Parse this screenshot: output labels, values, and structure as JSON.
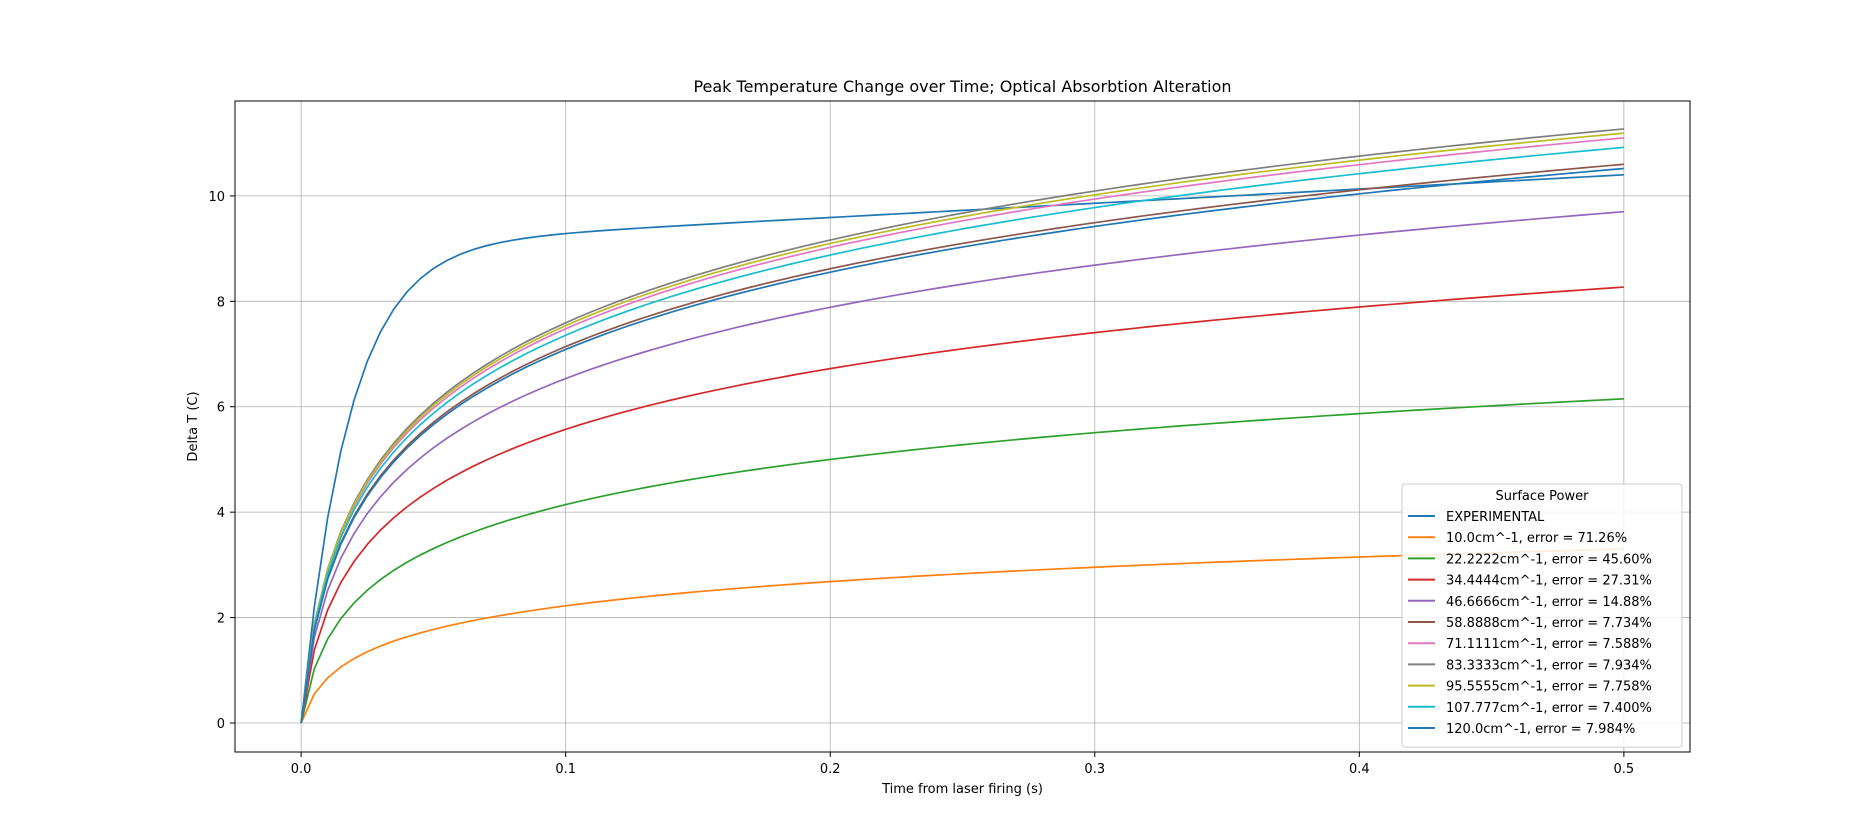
{
  "chart_data": {
    "type": "line",
    "title": "Peak Temperature Change over Time; Optical Absorbtion Alteration",
    "xlabel": "Time from laser firing (s)",
    "ylabel": "Delta T (C)",
    "xlim": [
      -0.025,
      0.525
    ],
    "ylim": [
      -0.55,
      11.8
    ],
    "xticks": [
      0.0,
      0.1,
      0.2,
      0.3,
      0.4,
      0.5
    ],
    "xtick_labels": [
      "0.0",
      "0.1",
      "0.2",
      "0.3",
      "0.4",
      "0.5"
    ],
    "yticks": [
      0,
      2,
      4,
      6,
      8,
      10
    ],
    "ytick_labels": [
      "0",
      "2",
      "4",
      "6",
      "8",
      "10"
    ],
    "grid": true,
    "legend_title": "Surface Power",
    "legend_position": "lower-right",
    "series": [
      {
        "name": "EXPERIMENTAL",
        "color": "#1f77b4",
        "kind": "exp",
        "final": 10.4
      },
      {
        "name": "10.0cm^-1, error = 71.26%",
        "color": "#ff7f0e",
        "final": 3.3
      },
      {
        "name": "22.2222cm^-1, error = 45.60%",
        "color": "#2ca02c",
        "final": 6.15
      },
      {
        "name": "34.4444cm^-1, error = 27.31%",
        "color": "#d62728",
        "final": 8.27
      },
      {
        "name": "46.6666cm^-1, error = 14.88%",
        "color": "#9467bd",
        "final": 9.7
      },
      {
        "name": "58.8888cm^-1, error = 7.734%",
        "color": "#8c564b",
        "final": 10.6
      },
      {
        "name": "71.1111cm^-1, error = 7.588%",
        "color": "#e377c2",
        "final": 11.1
      },
      {
        "name": "83.3333cm^-1, error = 7.934%",
        "color": "#7f7f7f",
        "final": 11.27
      },
      {
        "name": "95.5555cm^-1, error = 7.758%",
        "color": "#bcbd22",
        "final": 11.19
      },
      {
        "name": "107.777cm^-1, error = 7.400%",
        "color": "#17becf",
        "final": 10.92
      },
      {
        "name": "120.0cm^-1, error = 7.984%",
        "color": "#1f77b4",
        "final": 10.52
      }
    ]
  }
}
